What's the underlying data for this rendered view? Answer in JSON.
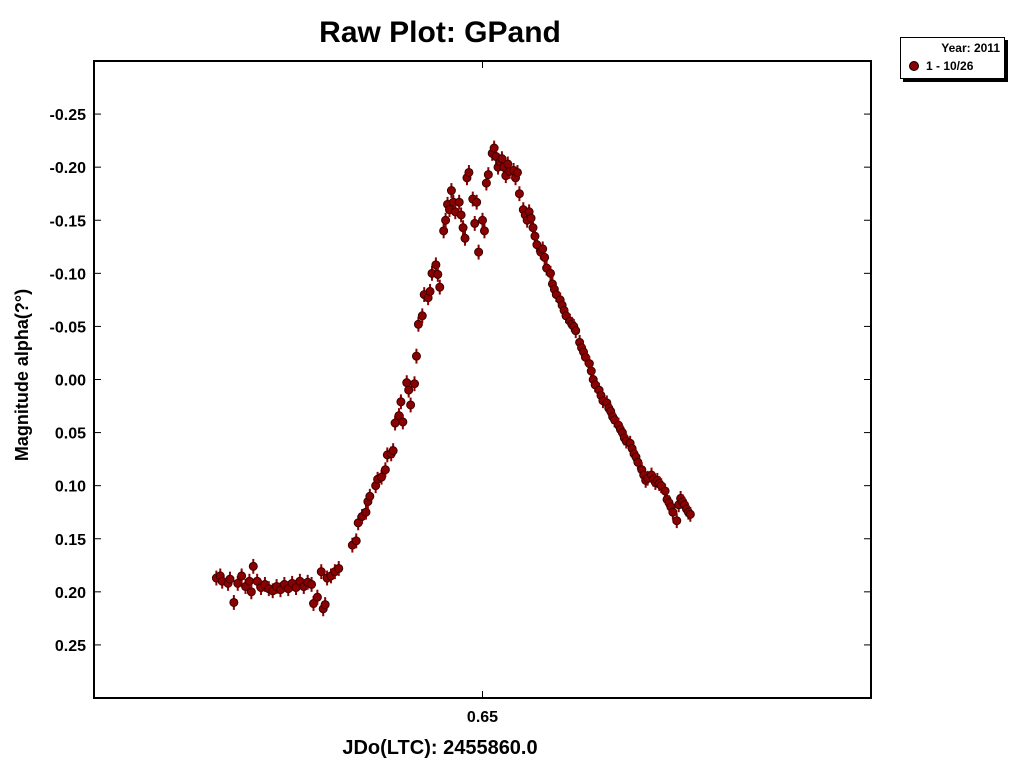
{
  "chart_data": {
    "type": "scatter",
    "title": "Raw Plot: GPand",
    "xlabel": "JDo(LTC): 2455860.0",
    "ylabel": "Magnitude alpha(?°)",
    "x_tick_labels": [
      "0.65"
    ],
    "x_ticks": [
      0.65
    ],
    "xlim": [
      0.55,
      0.75
    ],
    "y_tick_labels": [
      "-0.25",
      "-0.20",
      "-0.15",
      "-0.10",
      "-0.05",
      "0.00",
      "0.05",
      "0.10",
      "0.15",
      "0.20",
      "0.25"
    ],
    "y_ticks": [
      -0.25,
      -0.2,
      -0.15,
      -0.1,
      -0.05,
      0.0,
      0.05,
      0.1,
      0.15,
      0.2,
      0.25
    ],
    "ylim": [
      -0.3,
      0.3
    ],
    "y_inverted": true,
    "grid": false,
    "legend_position": "outside-top-right",
    "legend": {
      "title": "Year: 2011",
      "entries": [
        "1 - 10/26"
      ]
    },
    "series": [
      {
        "name": "1 - 10/26",
        "color": "#8b0000",
        "error_bar": 0.007,
        "points": [
          [
            0.5815,
            0.187
          ],
          [
            0.5825,
            0.185
          ],
          [
            0.583,
            0.19
          ],
          [
            0.5845,
            0.192
          ],
          [
            0.585,
            0.188
          ],
          [
            0.586,
            0.21
          ],
          [
            0.587,
            0.192
          ],
          [
            0.588,
            0.185
          ],
          [
            0.589,
            0.195
          ],
          [
            0.59,
            0.19
          ],
          [
            0.5905,
            0.2
          ],
          [
            0.591,
            0.176
          ],
          [
            0.592,
            0.19
          ],
          [
            0.593,
            0.196
          ],
          [
            0.594,
            0.193
          ],
          [
            0.595,
            0.197
          ],
          [
            0.596,
            0.199
          ],
          [
            0.597,
            0.195
          ],
          [
            0.598,
            0.198
          ],
          [
            0.599,
            0.193
          ],
          [
            0.6,
            0.197
          ],
          [
            0.601,
            0.192
          ],
          [
            0.602,
            0.196
          ],
          [
            0.603,
            0.19
          ],
          [
            0.604,
            0.195
          ],
          [
            0.605,
            0.191
          ],
          [
            0.606,
            0.193
          ],
          [
            0.6065,
            0.211
          ],
          [
            0.6075,
            0.205
          ],
          [
            0.6085,
            0.181
          ],
          [
            0.609,
            0.216
          ],
          [
            0.6095,
            0.212
          ],
          [
            0.61,
            0.187
          ],
          [
            0.611,
            0.185
          ],
          [
            0.612,
            0.181
          ],
          [
            0.613,
            0.178
          ],
          [
            0.6165,
            0.156
          ],
          [
            0.6175,
            0.152
          ],
          [
            0.618,
            0.135
          ],
          [
            0.619,
            0.129
          ],
          [
            0.62,
            0.125
          ],
          [
            0.6205,
            0.115
          ],
          [
            0.621,
            0.11
          ],
          [
            0.6225,
            0.1
          ],
          [
            0.623,
            0.094
          ],
          [
            0.624,
            0.092
          ],
          [
            0.625,
            0.085
          ],
          [
            0.6255,
            0.071
          ],
          [
            0.6265,
            0.07
          ],
          [
            0.627,
            0.067
          ],
          [
            0.6275,
            0.041
          ],
          [
            0.6285,
            0.034
          ],
          [
            0.629,
            0.021
          ],
          [
            0.6295,
            0.04
          ],
          [
            0.6305,
            0.003
          ],
          [
            0.631,
            0.01
          ],
          [
            0.6315,
            0.024
          ],
          [
            0.6325,
            0.004
          ],
          [
            0.633,
            -0.022
          ],
          [
            0.6335,
            -0.052
          ],
          [
            0.6345,
            -0.06
          ],
          [
            0.635,
            -0.08
          ],
          [
            0.636,
            -0.077
          ],
          [
            0.6365,
            -0.083
          ],
          [
            0.637,
            -0.1
          ],
          [
            0.638,
            -0.108
          ],
          [
            0.6385,
            -0.099
          ],
          [
            0.639,
            -0.087
          ],
          [
            0.64,
            -0.14
          ],
          [
            0.6405,
            -0.15
          ],
          [
            0.641,
            -0.165
          ],
          [
            0.6415,
            -0.16
          ],
          [
            0.642,
            -0.178
          ],
          [
            0.6425,
            -0.167
          ],
          [
            0.643,
            -0.158
          ],
          [
            0.644,
            -0.167
          ],
          [
            0.6445,
            -0.155
          ],
          [
            0.645,
            -0.143
          ],
          [
            0.6455,
            -0.133
          ],
          [
            0.646,
            -0.19
          ],
          [
            0.6465,
            -0.195
          ],
          [
            0.6475,
            -0.17
          ],
          [
            0.648,
            -0.147
          ],
          [
            0.6485,
            -0.167
          ],
          [
            0.649,
            -0.12
          ],
          [
            0.65,
            -0.15
          ],
          [
            0.6505,
            -0.14
          ],
          [
            0.651,
            -0.185
          ],
          [
            0.6515,
            -0.193
          ],
          [
            0.6525,
            -0.213
          ],
          [
            0.653,
            -0.218
          ],
          [
            0.6535,
            -0.21
          ],
          [
            0.654,
            -0.2
          ],
          [
            0.6545,
            -0.205
          ],
          [
            0.655,
            -0.208
          ],
          [
            0.6555,
            -0.2
          ],
          [
            0.656,
            -0.192
          ],
          [
            0.6565,
            -0.203
          ],
          [
            0.657,
            -0.196
          ],
          [
            0.658,
            -0.197
          ],
          [
            0.6585,
            -0.19
          ],
          [
            0.659,
            -0.195
          ],
          [
            0.6595,
            -0.175
          ],
          [
            0.6605,
            -0.16
          ],
          [
            0.661,
            -0.155
          ],
          [
            0.6615,
            -0.15
          ],
          [
            0.662,
            -0.158
          ],
          [
            0.6625,
            -0.152
          ],
          [
            0.663,
            -0.143
          ],
          [
            0.6635,
            -0.135
          ],
          [
            0.664,
            -0.127
          ],
          [
            0.665,
            -0.12
          ],
          [
            0.6655,
            -0.123
          ],
          [
            0.666,
            -0.115
          ],
          [
            0.6665,
            -0.105
          ],
          [
            0.6675,
            -0.1
          ],
          [
            0.668,
            -0.09
          ],
          [
            0.6685,
            -0.085
          ],
          [
            0.669,
            -0.08
          ],
          [
            0.67,
            -0.075
          ],
          [
            0.6705,
            -0.07
          ],
          [
            0.671,
            -0.065
          ],
          [
            0.6715,
            -0.06
          ],
          [
            0.6725,
            -0.055
          ],
          [
            0.673,
            -0.052
          ],
          [
            0.6735,
            -0.05
          ],
          [
            0.674,
            -0.046
          ],
          [
            0.675,
            -0.035
          ],
          [
            0.6755,
            -0.03
          ],
          [
            0.676,
            -0.026
          ],
          [
            0.6765,
            -0.021
          ],
          [
            0.6775,
            -0.015
          ],
          [
            0.678,
            -0.008
          ],
          [
            0.6785,
            0.0
          ],
          [
            0.679,
            0.005
          ],
          [
            0.68,
            0.01
          ],
          [
            0.6805,
            0.015
          ],
          [
            0.681,
            0.02
          ],
          [
            0.682,
            0.022
          ],
          [
            0.6825,
            0.027
          ],
          [
            0.683,
            0.03
          ],
          [
            0.6835,
            0.035
          ],
          [
            0.684,
            0.038
          ],
          [
            0.685,
            0.043
          ],
          [
            0.6855,
            0.047
          ],
          [
            0.686,
            0.05
          ],
          [
            0.6865,
            0.055
          ],
          [
            0.687,
            0.058
          ],
          [
            0.688,
            0.06
          ],
          [
            0.6885,
            0.065
          ],
          [
            0.689,
            0.07
          ],
          [
            0.6895,
            0.073
          ],
          [
            0.69,
            0.078
          ],
          [
            0.691,
            0.085
          ],
          [
            0.6915,
            0.09
          ],
          [
            0.692,
            0.095
          ],
          [
            0.6925,
            0.093
          ],
          [
            0.6935,
            0.09
          ],
          [
            0.694,
            0.094
          ],
          [
            0.6945,
            0.097
          ],
          [
            0.695,
            0.095
          ],
          [
            0.6955,
            0.098
          ],
          [
            0.696,
            0.1
          ],
          [
            0.697,
            0.105
          ],
          [
            0.6975,
            0.113
          ],
          [
            0.698,
            0.116
          ],
          [
            0.6985,
            0.12
          ],
          [
            0.699,
            0.125
          ],
          [
            0.7,
            0.133
          ],
          [
            0.7005,
            0.118
          ],
          [
            0.701,
            0.112
          ],
          [
            0.7015,
            0.115
          ],
          [
            0.702,
            0.118
          ],
          [
            0.7025,
            0.122
          ],
          [
            0.703,
            0.125
          ],
          [
            0.7035,
            0.127
          ]
        ]
      }
    ]
  }
}
